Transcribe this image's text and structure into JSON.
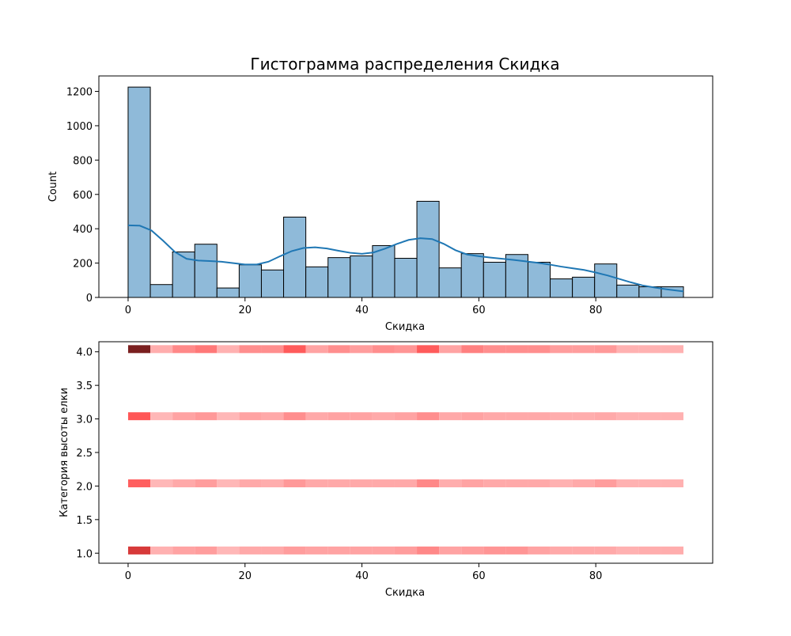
{
  "colors": {
    "hist_fill": "#8fbad9",
    "hist_edge": "#000000",
    "kde_line": "#1f77b4",
    "heat_base": "#ff4545",
    "heat_dark": "#7a1f1f"
  },
  "chart_data": [
    {
      "type": "histogram",
      "title": "Гистограмма распределения Скидка",
      "xlabel": "Скидка",
      "ylabel": "Count",
      "xlim": [
        -5,
        100
      ],
      "ylim": [
        0,
        1290
      ],
      "xticks": [
        0,
        20,
        40,
        60,
        80
      ],
      "yticks": [
        0,
        200,
        400,
        600,
        800,
        1000,
        1200
      ],
      "bins": [
        {
          "x0": 0.0,
          "x1": 3.8,
          "count": 1225
        },
        {
          "x0": 3.8,
          "x1": 7.6,
          "count": 75
        },
        {
          "x0": 7.6,
          "x1": 11.4,
          "count": 265
        },
        {
          "x0": 11.4,
          "x1": 15.2,
          "count": 310
        },
        {
          "x0": 15.2,
          "x1": 19.0,
          "count": 55
        },
        {
          "x0": 19.0,
          "x1": 22.8,
          "count": 190
        },
        {
          "x0": 22.8,
          "x1": 26.6,
          "count": 160
        },
        {
          "x0": 26.6,
          "x1": 30.4,
          "count": 468
        },
        {
          "x0": 30.4,
          "x1": 34.2,
          "count": 178
        },
        {
          "x0": 34.2,
          "x1": 38.0,
          "count": 232
        },
        {
          "x0": 38.0,
          "x1": 41.8,
          "count": 242
        },
        {
          "x0": 41.8,
          "x1": 45.6,
          "count": 302
        },
        {
          "x0": 45.6,
          "x1": 49.4,
          "count": 228
        },
        {
          "x0": 49.4,
          "x1": 53.2,
          "count": 560
        },
        {
          "x0": 53.2,
          "x1": 57.0,
          "count": 172
        },
        {
          "x0": 57.0,
          "x1": 60.8,
          "count": 255
        },
        {
          "x0": 60.8,
          "x1": 64.6,
          "count": 205
        },
        {
          "x0": 64.6,
          "x1": 68.4,
          "count": 250
        },
        {
          "x0": 68.4,
          "x1": 72.2,
          "count": 205
        },
        {
          "x0": 72.2,
          "x1": 76.0,
          "count": 108
        },
        {
          "x0": 76.0,
          "x1": 79.8,
          "count": 118
        },
        {
          "x0": 79.8,
          "x1": 83.6,
          "count": 195
        },
        {
          "x0": 83.6,
          "x1": 87.4,
          "count": 72
        },
        {
          "x0": 87.4,
          "x1": 91.2,
          "count": 62
        },
        {
          "x0": 91.2,
          "x1": 95.0,
          "count": 62
        }
      ],
      "kde": {
        "x": [
          0,
          2,
          4,
          6,
          8,
          10,
          12,
          14,
          16,
          18,
          20,
          22,
          24,
          26,
          28,
          30,
          32,
          34,
          36,
          38,
          40,
          42,
          44,
          46,
          48,
          50,
          52,
          54,
          56,
          58,
          60,
          62,
          64,
          66,
          68,
          70,
          72,
          74,
          76,
          78,
          80,
          82,
          84,
          86,
          88,
          90,
          92,
          95
        ],
        "y": [
          420,
          418,
          390,
          330,
          265,
          225,
          215,
          212,
          208,
          200,
          192,
          192,
          208,
          240,
          270,
          288,
          292,
          285,
          272,
          260,
          254,
          262,
          285,
          312,
          335,
          345,
          340,
          312,
          275,
          250,
          240,
          232,
          225,
          218,
          210,
          202,
          192,
          180,
          170,
          160,
          145,
          128,
          108,
          88,
          70,
          58,
          48,
          35
        ]
      }
    },
    {
      "type": "heatmap",
      "xlabel": "Скидка",
      "ylabel": "Категория высоты елки",
      "xlim": [
        -5,
        100
      ],
      "ylim": [
        0.85,
        4.15
      ],
      "xticks": [
        0,
        20,
        40,
        60,
        80
      ],
      "yticks": [
        "1.0",
        "1.5",
        "2.0",
        "2.5",
        "3.0",
        "3.5",
        "4.0"
      ],
      "rows": [
        {
          "y": 4.0,
          "intensity": [
            1.0,
            0.4,
            0.58,
            0.66,
            0.38,
            0.55,
            0.55,
            0.8,
            0.45,
            0.55,
            0.48,
            0.55,
            0.52,
            0.8,
            0.45,
            0.62,
            0.55,
            0.55,
            0.55,
            0.48,
            0.48,
            0.5,
            0.38,
            0.38,
            0.38
          ]
        },
        {
          "y": 3.0,
          "intensity": [
            0.82,
            0.35,
            0.45,
            0.5,
            0.35,
            0.45,
            0.42,
            0.55,
            0.42,
            0.45,
            0.45,
            0.42,
            0.45,
            0.55,
            0.42,
            0.45,
            0.42,
            0.42,
            0.42,
            0.4,
            0.4,
            0.42,
            0.38,
            0.38,
            0.38
          ]
        },
        {
          "y": 2.0,
          "intensity": [
            0.78,
            0.35,
            0.42,
            0.48,
            0.35,
            0.42,
            0.4,
            0.5,
            0.42,
            0.42,
            0.42,
            0.42,
            0.42,
            0.58,
            0.4,
            0.45,
            0.42,
            0.42,
            0.42,
            0.38,
            0.42,
            0.48,
            0.38,
            0.38,
            0.38
          ]
        },
        {
          "y": 1.0,
          "intensity": [
            0.92,
            0.38,
            0.45,
            0.48,
            0.35,
            0.42,
            0.42,
            0.48,
            0.45,
            0.45,
            0.45,
            0.45,
            0.48,
            0.58,
            0.45,
            0.48,
            0.52,
            0.52,
            0.45,
            0.42,
            0.42,
            0.42,
            0.38,
            0.4,
            0.4
          ]
        }
      ]
    }
  ]
}
